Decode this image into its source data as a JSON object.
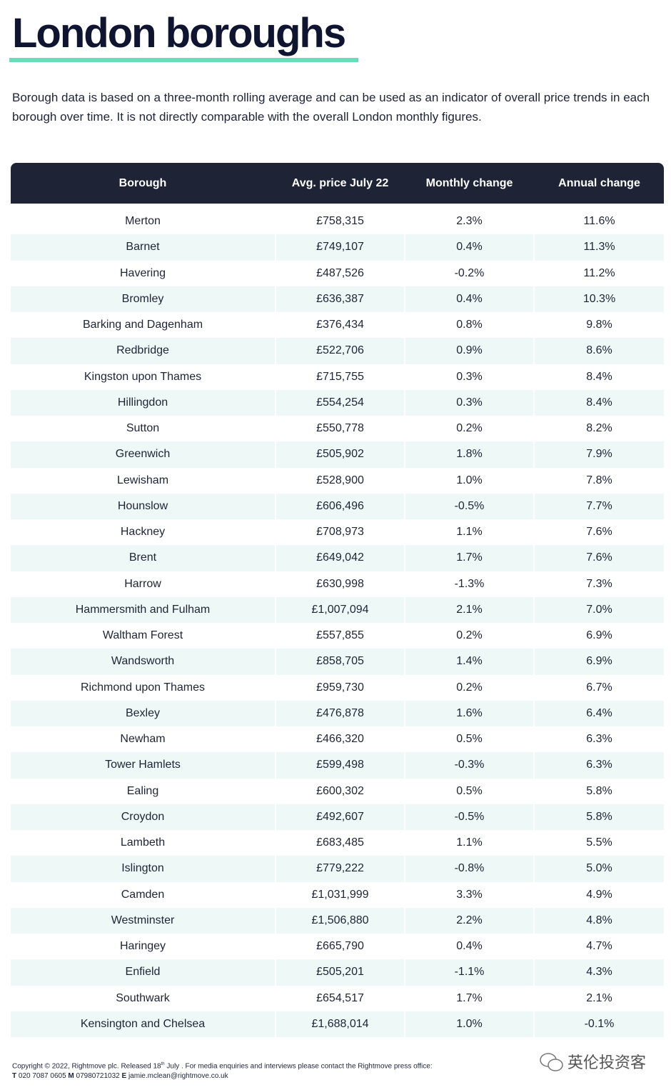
{
  "header": {
    "title": "London boroughs",
    "intro": "Borough data is based on a three-month rolling average and can be used as an indicator of overall price trends in each borough over time. It is not directly comparable with the overall London monthly figures."
  },
  "table": {
    "columns": [
      "Borough",
      "Avg. price July 22",
      "Monthly change",
      "Annual change"
    ],
    "rows": [
      [
        "Merton",
        "£758,315",
        "2.3%",
        "11.6%"
      ],
      [
        "Barnet",
        "£749,107",
        "0.4%",
        "11.3%"
      ],
      [
        "Havering",
        "£487,526",
        "-0.2%",
        "11.2%"
      ],
      [
        "Bromley",
        "£636,387",
        "0.4%",
        "10.3%"
      ],
      [
        "Barking and Dagenham",
        "£376,434",
        "0.8%",
        "9.8%"
      ],
      [
        "Redbridge",
        "£522,706",
        "0.9%",
        "8.6%"
      ],
      [
        "Kingston upon Thames",
        "£715,755",
        "0.3%",
        "8.4%"
      ],
      [
        "Hillingdon",
        "£554,254",
        "0.3%",
        "8.4%"
      ],
      [
        "Sutton",
        "£550,778",
        "0.2%",
        "8.2%"
      ],
      [
        "Greenwich",
        "£505,902",
        "1.8%",
        "7.9%"
      ],
      [
        "Lewisham",
        "£528,900",
        "1.0%",
        "7.8%"
      ],
      [
        "Hounslow",
        "£606,496",
        "-0.5%",
        "7.7%"
      ],
      [
        "Hackney",
        "£708,973",
        "1.1%",
        "7.6%"
      ],
      [
        "Brent",
        "£649,042",
        "1.7%",
        "7.6%"
      ],
      [
        "Harrow",
        "£630,998",
        "-1.3%",
        "7.3%"
      ],
      [
        "Hammersmith and Fulham",
        "£1,007,094",
        "2.1%",
        "7.0%"
      ],
      [
        "Waltham Forest",
        "£557,855",
        "0.2%",
        "6.9%"
      ],
      [
        "Wandsworth",
        "£858,705",
        "1.4%",
        "6.9%"
      ],
      [
        "Richmond upon Thames",
        "£959,730",
        "0.2%",
        "6.7%"
      ],
      [
        "Bexley",
        "£476,878",
        "1.6%",
        "6.4%"
      ],
      [
        "Newham",
        "£466,320",
        "0.5%",
        "6.3%"
      ],
      [
        "Tower Hamlets",
        "£599,498",
        "-0.3%",
        "6.3%"
      ],
      [
        "Ealing",
        "£600,302",
        "0.5%",
        "5.8%"
      ],
      [
        "Croydon",
        "£492,607",
        "-0.5%",
        "5.8%"
      ],
      [
        "Lambeth",
        "£683,485",
        "1.1%",
        "5.5%"
      ],
      [
        "Islington",
        "£779,222",
        "-0.8%",
        "5.0%"
      ],
      [
        "Camden",
        "£1,031,999",
        "3.3%",
        "4.9%"
      ],
      [
        "Westminster",
        "£1,506,880",
        "2.2%",
        "4.8%"
      ],
      [
        "Haringey",
        "£665,790",
        "0.4%",
        "4.7%"
      ],
      [
        "Enfield",
        "£505,201",
        "-1.1%",
        "4.3%"
      ],
      [
        "Southwark",
        "£654,517",
        "1.7%",
        "2.1%"
      ],
      [
        "Kensington and Chelsea",
        "£1,688,014",
        "1.0%",
        "-0.1%"
      ]
    ]
  },
  "footer": {
    "copyright": [
      "Copyright © 2022, Rightmove plc. Released 18",
      "th",
      " July . For media enquiries and interviews please contact the Rightmove press office:"
    ],
    "contacts": [
      {
        "label": "T",
        "value": "020 7087 0605"
      },
      {
        "label": "M",
        "value": "07980721032"
      },
      {
        "label": "E",
        "value": "jamie.mclean@rightmove.co.uk"
      }
    ],
    "watermark": "英伦投资客"
  }
}
